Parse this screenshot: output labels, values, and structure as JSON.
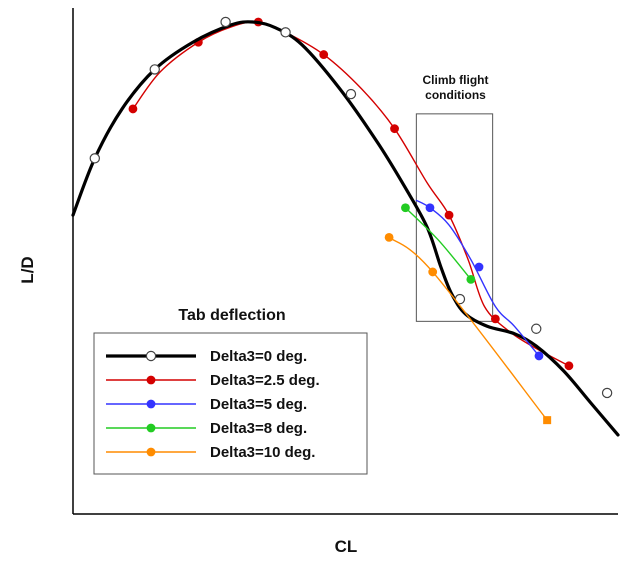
{
  "chart_data": {
    "type": "line",
    "xlabel": "CL",
    "ylabel": "L/D",
    "xlim": [
      0,
      10
    ],
    "ylim": [
      0,
      10
    ],
    "grid": false,
    "legend": {
      "title": "Tab deflection",
      "placement": "bottom-left"
    },
    "annotation": {
      "lines": [
        "Climb flight",
        "conditions"
      ],
      "xrange": [
        6.3,
        7.7
      ],
      "yrange": [
        3.9,
        8.1
      ]
    },
    "series": [
      {
        "name": "Delta3=0 deg.",
        "color": "#000000",
        "marker": "open",
        "line_width": 3.2,
        "curve": [
          [
            0.0,
            6.05
          ],
          [
            0.4,
            7.2
          ],
          [
            0.9,
            8.2
          ],
          [
            1.5,
            9.0
          ],
          [
            2.2,
            9.55
          ],
          [
            2.9,
            9.9
          ],
          [
            3.3,
            9.96
          ],
          [
            3.7,
            9.85
          ],
          [
            4.2,
            9.5
          ],
          [
            4.9,
            8.6
          ],
          [
            5.6,
            7.5
          ],
          [
            6.1,
            6.6
          ],
          [
            6.5,
            5.8
          ],
          [
            6.75,
            5.0
          ],
          [
            6.95,
            4.45
          ],
          [
            7.2,
            4.05
          ],
          [
            7.6,
            3.8
          ],
          [
            8.1,
            3.65
          ],
          [
            8.5,
            3.4
          ],
          [
            9.0,
            2.9
          ],
          [
            9.5,
            2.25
          ],
          [
            10.0,
            1.6
          ]
        ],
        "markers": [
          [
            0.4,
            7.2
          ],
          [
            1.5,
            9.0
          ],
          [
            2.8,
            9.96
          ],
          [
            3.9,
            9.75
          ],
          [
            5.1,
            8.5
          ],
          [
            7.1,
            4.35
          ],
          [
            8.5,
            3.75
          ],
          [
            9.8,
            2.45
          ]
        ]
      },
      {
        "name": "Delta3=2.5 deg.",
        "color": "#d40000",
        "marker": "filled",
        "line_width": 1.4,
        "curve": [
          [
            1.1,
            8.2
          ],
          [
            1.6,
            8.95
          ],
          [
            2.3,
            9.55
          ],
          [
            2.9,
            9.86
          ],
          [
            3.4,
            9.96
          ],
          [
            3.9,
            9.75
          ],
          [
            4.6,
            9.3
          ],
          [
            5.3,
            8.6
          ],
          [
            5.9,
            7.8
          ],
          [
            6.5,
            6.7
          ],
          [
            6.9,
            6.05
          ],
          [
            7.25,
            5.15
          ],
          [
            7.55,
            4.2
          ],
          [
            8.0,
            3.7
          ],
          [
            8.5,
            3.35
          ],
          [
            9.1,
            3.0
          ]
        ],
        "markers": [
          [
            1.1,
            8.2
          ],
          [
            2.3,
            9.55
          ],
          [
            3.4,
            9.96
          ],
          [
            4.6,
            9.3
          ],
          [
            5.9,
            7.8
          ],
          [
            6.9,
            6.05
          ],
          [
            7.75,
            3.95
          ],
          [
            9.1,
            3.0
          ]
        ]
      },
      {
        "name": "Delta3=5 deg.",
        "color": "#3333ff",
        "marker": "filled",
        "line_width": 1.4,
        "curve": [
          [
            6.3,
            6.35
          ],
          [
            6.55,
            6.2
          ],
          [
            6.9,
            5.85
          ],
          [
            7.3,
            5.15
          ],
          [
            7.75,
            4.2
          ],
          [
            8.1,
            3.8
          ],
          [
            8.55,
            3.2
          ]
        ],
        "markers": [
          [
            6.55,
            6.2
          ],
          [
            7.45,
            5.0
          ],
          [
            8.55,
            3.2
          ]
        ]
      },
      {
        "name": "Delta3=8 deg.",
        "color": "#22cc22",
        "marker": "filled",
        "line_width": 1.4,
        "curve": [
          [
            6.1,
            6.2
          ],
          [
            6.7,
            5.55
          ],
          [
            7.3,
            4.75
          ]
        ],
        "markers": [
          [
            6.1,
            6.2
          ],
          [
            7.3,
            4.75
          ]
        ]
      },
      {
        "name": "Delta3=10 deg.",
        "color": "#ff8c00",
        "marker": "filled",
        "line_width": 1.4,
        "curve": [
          [
            5.8,
            5.6
          ],
          [
            6.6,
            4.9
          ],
          [
            8.7,
            1.9
          ]
        ],
        "markers": [
          [
            5.8,
            5.6
          ],
          [
            6.6,
            4.9
          ],
          [
            8.7,
            1.9
          ]
        ]
      }
    ]
  }
}
